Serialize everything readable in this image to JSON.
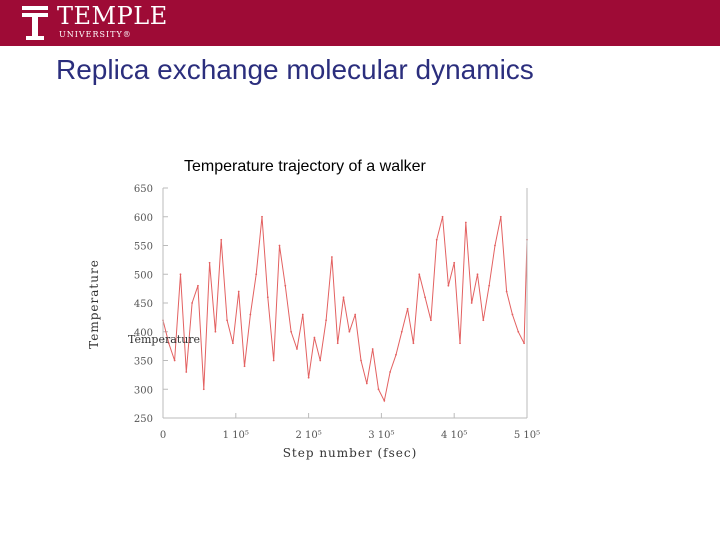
{
  "header": {
    "logo_word": "TEMPLE",
    "logo_sub": "UNIVERSITY®",
    "brand_color": "#9e0b36"
  },
  "slide": {
    "title": "Replica exchange molecular dynamics",
    "title_color": "#2b2e7d"
  },
  "chart_data": {
    "type": "line",
    "title": "Temperature trajectory of a walker",
    "xlabel": "Step number (fsec)",
    "ylabel": "Temperature",
    "overlay_label": "Temperature",
    "line_color": "#e36161",
    "xlim": [
      0,
      500000
    ],
    "ylim": [
      250,
      650
    ],
    "x_ticks": [
      0,
      100000,
      200000,
      300000,
      400000,
      500000
    ],
    "x_tick_labels": [
      "0",
      "1 10⁵",
      "2 10⁵",
      "3 10⁵",
      "4 10⁵",
      "5 10⁵"
    ],
    "y_ticks": [
      250,
      300,
      350,
      400,
      450,
      500,
      550,
      600,
      650
    ],
    "y_tick_labels": [
      "250",
      "300",
      "350",
      "400",
      "450",
      "500",
      "550",
      "600",
      "650"
    ],
    "series": [
      {
        "x": [
          0,
          8000,
          16000,
          24000,
          32000,
          40000,
          48000,
          56000,
          64000,
          72000,
          80000,
          88000,
          96000,
          104000,
          112000,
          120000,
          128000,
          136000,
          144000,
          152000,
          160000,
          168000,
          176000,
          184000,
          192000,
          200000,
          208000,
          216000,
          224000,
          232000,
          240000,
          248000,
          256000,
          264000,
          272000,
          280000,
          288000,
          296000,
          304000,
          312000,
          320000,
          328000,
          336000,
          344000,
          352000,
          360000,
          368000,
          376000,
          384000,
          392000,
          400000,
          408000,
          416000,
          424000,
          432000,
          440000,
          448000,
          456000,
          464000,
          472000,
          480000,
          488000,
          496000,
          500000
        ],
        "y": [
          420,
          380,
          350,
          500,
          330,
          450,
          480,
          300,
          520,
          400,
          560,
          420,
          380,
          470,
          340,
          430,
          500,
          600,
          460,
          350,
          550,
          480,
          400,
          370,
          430,
          320,
          390,
          350,
          420,
          530,
          380,
          460,
          400,
          430,
          350,
          310,
          370,
          300,
          280,
          330,
          360,
          400,
          440,
          380,
          500,
          460,
          420,
          560,
          600,
          480,
          520,
          380,
          590,
          450,
          500,
          420,
          480,
          550,
          600,
          470,
          430,
          400,
          380,
          560
        ]
      }
    ]
  }
}
